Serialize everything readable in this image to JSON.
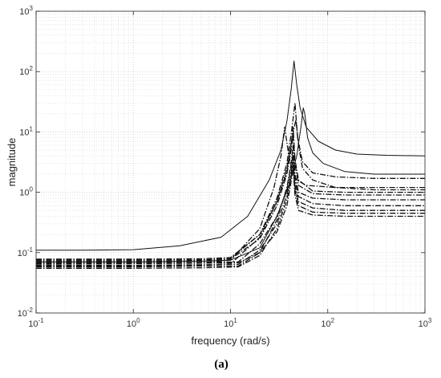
{
  "chart_data": {
    "type": "line",
    "xlabel": "frequency (rad/s)",
    "ylabel": "magnitude",
    "caption": "(a)",
    "xscale": "log",
    "yscale": "log",
    "xlim": [
      0.1,
      1000
    ],
    "ylim": [
      0.01,
      1000
    ],
    "grid": true,
    "x_ticks": [
      {
        "value": 0.1,
        "base": "10",
        "exp": "-1"
      },
      {
        "value": 1,
        "base": "10",
        "exp": "0"
      },
      {
        "value": 10,
        "base": "10",
        "exp": "1"
      },
      {
        "value": 100,
        "base": "10",
        "exp": "2"
      },
      {
        "value": 1000,
        "base": "10",
        "exp": "3"
      }
    ],
    "y_ticks": [
      {
        "value": 0.01,
        "base": "10",
        "exp": "-2"
      },
      {
        "value": 0.1,
        "base": "10",
        "exp": "-1"
      },
      {
        "value": 1,
        "base": "10",
        "exp": "0"
      },
      {
        "value": 10,
        "base": "10",
        "exp": "1"
      },
      {
        "value": 100,
        "base": "10",
        "exp": "2"
      },
      {
        "value": 1000,
        "base": "10",
        "exp": "3"
      }
    ],
    "series": [
      {
        "style": "solid",
        "x": [
          0.1,
          0.3,
          1,
          3,
          8,
          15,
          25,
          33,
          38,
          42,
          45,
          48,
          52,
          60,
          80,
          120,
          200,
          400,
          1000
        ],
        "y": [
          0.11,
          0.11,
          0.112,
          0.13,
          0.18,
          0.4,
          1.6,
          5,
          15,
          50,
          150,
          60,
          25,
          12,
          7,
          5,
          4.3,
          4.1,
          4
        ]
      },
      {
        "style": "solid",
        "x": [
          0.1,
          1,
          5,
          10,
          20,
          30,
          40,
          48,
          53,
          56,
          58,
          62,
          70,
          90,
          150,
          300,
          1000
        ],
        "y": [
          0.07,
          0.07,
          0.072,
          0.075,
          0.12,
          0.4,
          1.3,
          4,
          12,
          25,
          20,
          8,
          4.5,
          3,
          2.2,
          2,
          2
        ]
      },
      {
        "style": "dashdot",
        "x": [
          0.1,
          1,
          5,
          10,
          20,
          30,
          38,
          43,
          46,
          49,
          55,
          70,
          120,
          300,
          1000
        ],
        "y": [
          0.075,
          0.075,
          0.076,
          0.08,
          0.2,
          0.8,
          3,
          12,
          30,
          8,
          3.2,
          2.1,
          1.8,
          1.7,
          1.7
        ]
      },
      {
        "style": "dashdot",
        "x": [
          0.1,
          1,
          5,
          10,
          20,
          28,
          33,
          36,
          39,
          42,
          48,
          60,
          120,
          400,
          1000
        ],
        "y": [
          0.065,
          0.066,
          0.068,
          0.075,
          0.25,
          1.2,
          4,
          12,
          5,
          2.5,
          1.6,
          1.3,
          1.2,
          1.2,
          1.2
        ]
      },
      {
        "style": "dashdot",
        "x": [
          0.1,
          1,
          5,
          10,
          20,
          30,
          38,
          43,
          47,
          50,
          55,
          70,
          120,
          300,
          1000
        ],
        "y": [
          0.06,
          0.06,
          0.062,
          0.065,
          0.18,
          0.7,
          2.5,
          8,
          16,
          6,
          2.5,
          1.6,
          1.2,
          1.1,
          1.1
        ]
      },
      {
        "style": "dashdot",
        "x": [
          0.1,
          1,
          5,
          10,
          20,
          30,
          38,
          42,
          44,
          46,
          50,
          70,
          150,
          1000
        ],
        "y": [
          0.072,
          0.072,
          0.073,
          0.078,
          0.17,
          0.6,
          2,
          5,
          9,
          3,
          1.3,
          0.95,
          0.9,
          0.9
        ]
      },
      {
        "style": "dashdot",
        "x": [
          0.1,
          1,
          5,
          12,
          20,
          30,
          38,
          42,
          44,
          46,
          50,
          70,
          150,
          1000
        ],
        "y": [
          0.058,
          0.058,
          0.06,
          0.06,
          0.1,
          0.35,
          1.2,
          3,
          6,
          2,
          1,
          0.8,
          0.75,
          0.75
        ]
      },
      {
        "style": "dashdot",
        "x": [
          0.1,
          1,
          5,
          12,
          20,
          30,
          38,
          42,
          44,
          46,
          50,
          70,
          150,
          1000
        ],
        "y": [
          0.068,
          0.068,
          0.069,
          0.07,
          0.14,
          0.4,
          1.1,
          2.5,
          4.5,
          1.6,
          0.85,
          0.65,
          0.6,
          0.6
        ]
      },
      {
        "style": "dashdot",
        "x": [
          0.1,
          1,
          5,
          12,
          20,
          30,
          38,
          42,
          44,
          46,
          50,
          70,
          150,
          1000
        ],
        "y": [
          0.062,
          0.062,
          0.063,
          0.064,
          0.11,
          0.3,
          0.9,
          2,
          3.5,
          1.3,
          0.7,
          0.55,
          0.5,
          0.5
        ]
      },
      {
        "style": "dashdot",
        "x": [
          0.1,
          1,
          5,
          12,
          20,
          30,
          38,
          42,
          44,
          46,
          50,
          70,
          150,
          1000
        ],
        "y": [
          0.055,
          0.055,
          0.056,
          0.058,
          0.09,
          0.25,
          0.75,
          1.8,
          3,
          1.1,
          0.6,
          0.47,
          0.45,
          0.45
        ]
      },
      {
        "style": "dashdot",
        "x": [
          0.1,
          1,
          5,
          12,
          20,
          30,
          38,
          42,
          44,
          46,
          50,
          70,
          150,
          1000
        ],
        "y": [
          0.066,
          0.066,
          0.067,
          0.068,
          0.1,
          0.22,
          0.6,
          1.5,
          2.5,
          0.9,
          0.5,
          0.42,
          0.4,
          0.4
        ]
      },
      {
        "style": "dashdot",
        "x": [
          0.1,
          1,
          5,
          10,
          20,
          30,
          38,
          42,
          44,
          46,
          50,
          70,
          150,
          1000
        ],
        "y": [
          0.078,
          0.078,
          0.079,
          0.083,
          0.2,
          0.7,
          2.2,
          6,
          12,
          3.5,
          1.6,
          1.05,
          1,
          1
        ]
      }
    ]
  }
}
